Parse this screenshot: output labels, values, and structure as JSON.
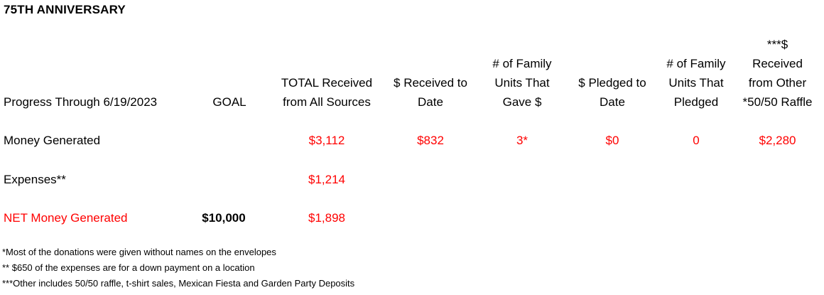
{
  "title": "75TH ANNIVERSARY",
  "headers": {
    "progress": "Progress Through 6/19/2023",
    "goal": "GOAL",
    "total_received": [
      "TOTAL Received",
      "from All Sources"
    ],
    "received_to_date": [
      "$ Received to",
      "Date"
    ],
    "family_units_gave": [
      "# of Family",
      "Units That",
      "Gave $"
    ],
    "pledged_to_date": [
      "$ Pledged to",
      "Date"
    ],
    "family_units_pledged": [
      "# of Family",
      "Units That",
      "Pledged"
    ],
    "received_other": [
      "***$",
      "Received",
      "from Other",
      "*50/50 Raffle"
    ]
  },
  "rows": [
    {
      "label": "Money Generated",
      "goal": "",
      "total_received": "$3,112",
      "received_to_date": "$832",
      "family_units_gave": "3*",
      "pledged_to_date": "$0",
      "family_units_pledged": "0",
      "received_other": "$2,280"
    },
    {
      "label": "Expenses**",
      "goal": "",
      "total_received": "$1,214",
      "received_to_date": "",
      "family_units_gave": "",
      "pledged_to_date": "",
      "family_units_pledged": "",
      "received_other": ""
    },
    {
      "label": "NET Money Generated",
      "goal": "$10,000",
      "total_received": "$1,898",
      "received_to_date": "",
      "family_units_gave": "",
      "pledged_to_date": "",
      "family_units_pledged": "",
      "received_other": ""
    }
  ],
  "notes": [
    "*Most of the donations were given without names on the envelopes",
    "** $650 of the expenses are for a down payment on a location",
    "***Other includes 50/50 raffle, t-shirt sales, Mexican Fiesta and Garden Party Deposits"
  ],
  "colors": {
    "value_red": "#ff0000",
    "text": "#000000"
  }
}
